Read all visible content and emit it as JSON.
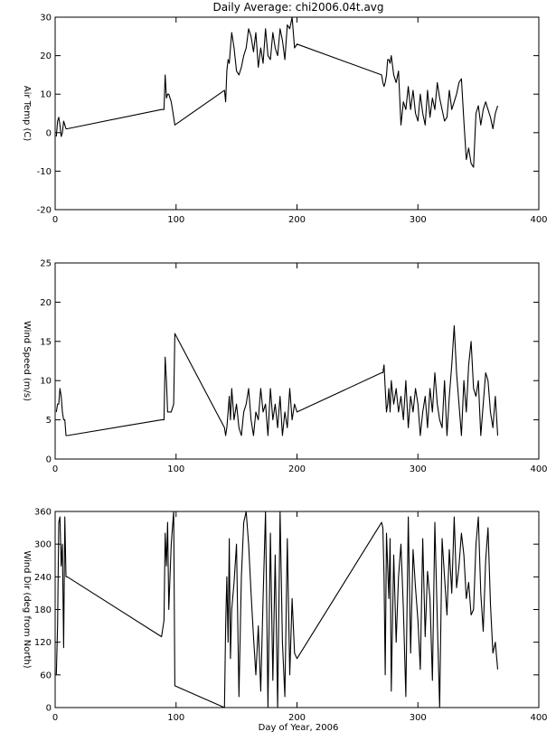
{
  "title": "Daily Average: chi2006.04t.avg",
  "chart_data": [
    {
      "type": "line",
      "ylabel": "Air Temp (C)",
      "xlabel": "",
      "xlim": [
        0,
        400
      ],
      "ylim": [
        -20,
        30
      ],
      "x_ticks": [
        "0",
        "100",
        "200",
        "300",
        "400"
      ],
      "y_ticks": [
        "-20",
        "-10",
        "0",
        "10",
        "20",
        "30"
      ],
      "x": [
        1,
        2,
        3,
        4,
        5,
        6,
        7,
        8,
        9,
        10,
        88,
        90,
        91,
        92,
        93,
        94,
        96,
        98,
        99,
        140,
        141,
        142,
        143,
        144,
        145,
        146,
        148,
        150,
        152,
        154,
        156,
        158,
        160,
        162,
        164,
        166,
        168,
        170,
        172,
        174,
        176,
        178,
        180,
        182,
        184,
        186,
        188,
        190,
        192,
        194,
        196,
        198,
        200,
        270,
        271,
        272,
        273,
        274,
        275,
        276,
        277,
        278,
        280,
        282,
        284,
        286,
        288,
        290,
        292,
        294,
        296,
        298,
        300,
        302,
        304,
        306,
        308,
        310,
        312,
        314,
        316,
        318,
        320,
        322,
        324,
        326,
        328,
        330,
        332,
        334,
        336,
        338,
        340,
        342,
        344,
        346,
        348,
        350,
        352,
        354,
        356,
        358,
        360,
        362,
        364,
        366
      ],
      "y": [
        -1,
        3,
        4,
        2,
        -1,
        0,
        3,
        2,
        1,
        1,
        6,
        6,
        15,
        9,
        10,
        10,
        8,
        4,
        2,
        11,
        8,
        16,
        19,
        18,
        22,
        26,
        22,
        16,
        15,
        17,
        20,
        22,
        27,
        25,
        21,
        26,
        17,
        22,
        18,
        27,
        20,
        19,
        26,
        22,
        20,
        27,
        24,
        19,
        28,
        27,
        30,
        22,
        23,
        15,
        13,
        12,
        13,
        15,
        19,
        19,
        18,
        20,
        15,
        13,
        16,
        2,
        8,
        6,
        12,
        6,
        11,
        5,
        3,
        10,
        5,
        2,
        11,
        4,
        9,
        6,
        13,
        9,
        6,
        3,
        4,
        11,
        6,
        8,
        10,
        13,
        14,
        3,
        -7,
        -4,
        -8,
        -9,
        5,
        7,
        2,
        6,
        8,
        6,
        4,
        1,
        5,
        7
      ]
    },
    {
      "type": "line",
      "ylabel": "Wind Speed (m/s)",
      "xlabel": "",
      "xlim": [
        0,
        400
      ],
      "ylim": [
        0,
        25
      ],
      "x_ticks": [
        "0",
        "100",
        "200",
        "300",
        "400"
      ],
      "y_ticks": [
        "0",
        "5",
        "10",
        "15",
        "20",
        "25"
      ],
      "x": [
        1,
        2,
        3,
        4,
        5,
        6,
        7,
        8,
        9,
        10,
        88,
        90,
        91,
        92,
        93,
        94,
        96,
        98,
        99,
        140,
        141,
        142,
        143,
        144,
        145,
        146,
        148,
        150,
        152,
        154,
        156,
        158,
        160,
        162,
        164,
        166,
        168,
        170,
        172,
        174,
        176,
        178,
        180,
        182,
        184,
        186,
        188,
        190,
        192,
        194,
        196,
        198,
        200,
        270,
        271,
        272,
        273,
        274,
        275,
        276,
        277,
        278,
        280,
        282,
        284,
        286,
        288,
        290,
        292,
        294,
        296,
        298,
        300,
        302,
        304,
        306,
        308,
        310,
        312,
        314,
        316,
        318,
        320,
        322,
        324,
        326,
        328,
        330,
        332,
        334,
        336,
        338,
        340,
        342,
        344,
        346,
        348,
        350,
        352,
        354,
        356,
        358,
        360,
        362,
        364,
        366
      ],
      "y": [
        6,
        7,
        7,
        9,
        8,
        6,
        5,
        5,
        3,
        3,
        5,
        5,
        13,
        10,
        6,
        6,
        6,
        7,
        16,
        4,
        3,
        4,
        6,
        8,
        5,
        9,
        5,
        7,
        4,
        3,
        6,
        7,
        9,
        5,
        3,
        6,
        5,
        9,
        6,
        7,
        3,
        9,
        5,
        7,
        4,
        8,
        3,
        6,
        4,
        9,
        5,
        7,
        6,
        11,
        11,
        12,
        9,
        6,
        7,
        9,
        6,
        10,
        7,
        9,
        6,
        8,
        5,
        10,
        4,
        8,
        6,
        9,
        7,
        3,
        6,
        8,
        4,
        9,
        6,
        11,
        7,
        5,
        4,
        10,
        3,
        8,
        12,
        17,
        11,
        7,
        3,
        10,
        6,
        12,
        15,
        9,
        8,
        10,
        3,
        7,
        11,
        10,
        6,
        4,
        8,
        3
      ]
    },
    {
      "type": "line",
      "ylabel": "Wind Dir (deg from North)",
      "xlabel": "Day of Year, 2006",
      "xlim": [
        0,
        400
      ],
      "ylim": [
        0,
        360
      ],
      "x_ticks": [
        "0",
        "100",
        "200",
        "300",
        "400"
      ],
      "y_ticks": [
        "0",
        "60",
        "120",
        "180",
        "240",
        "300",
        "360"
      ],
      "x": [
        1,
        2,
        3,
        4,
        5,
        6,
        7,
        8,
        9,
        10,
        88,
        90,
        91,
        92,
        93,
        94,
        96,
        98,
        99,
        140,
        141,
        142,
        143,
        144,
        145,
        146,
        148,
        150,
        152,
        154,
        156,
        158,
        160,
        162,
        164,
        166,
        168,
        170,
        172,
        174,
        176,
        178,
        180,
        182,
        184,
        186,
        188,
        190,
        192,
        194,
        196,
        198,
        200,
        270,
        271,
        272,
        273,
        274,
        275,
        276,
        277,
        278,
        280,
        282,
        284,
        286,
        288,
        290,
        292,
        294,
        296,
        298,
        300,
        302,
        304,
        306,
        308,
        310,
        312,
        314,
        316,
        318,
        320,
        322,
        324,
        326,
        328,
        330,
        332,
        334,
        336,
        338,
        340,
        342,
        344,
        346,
        348,
        350,
        352,
        354,
        356,
        358,
        360,
        362,
        364,
        366
      ],
      "y": [
        60,
        150,
        340,
        350,
        260,
        300,
        110,
        350,
        240,
        240,
        130,
        160,
        320,
        260,
        340,
        180,
        300,
        360,
        40,
        0,
        150,
        240,
        120,
        310,
        90,
        180,
        230,
        300,
        20,
        240,
        340,
        360,
        300,
        210,
        130,
        60,
        150,
        30,
        200,
        360,
        0,
        320,
        50,
        280,
        0,
        360,
        120,
        20,
        310,
        60,
        200,
        100,
        90,
        340,
        330,
        240,
        60,
        320,
        260,
        200,
        310,
        30,
        280,
        120,
        240,
        300,
        180,
        20,
        350,
        100,
        290,
        220,
        160,
        70,
        310,
        130,
        250,
        200,
        50,
        340,
        160,
        0,
        310,
        240,
        170,
        290,
        210,
        350,
        220,
        260,
        320,
        280,
        200,
        230,
        170,
        180,
        300,
        350,
        210,
        140,
        270,
        330,
        190,
        100,
        120,
        70
      ]
    }
  ]
}
